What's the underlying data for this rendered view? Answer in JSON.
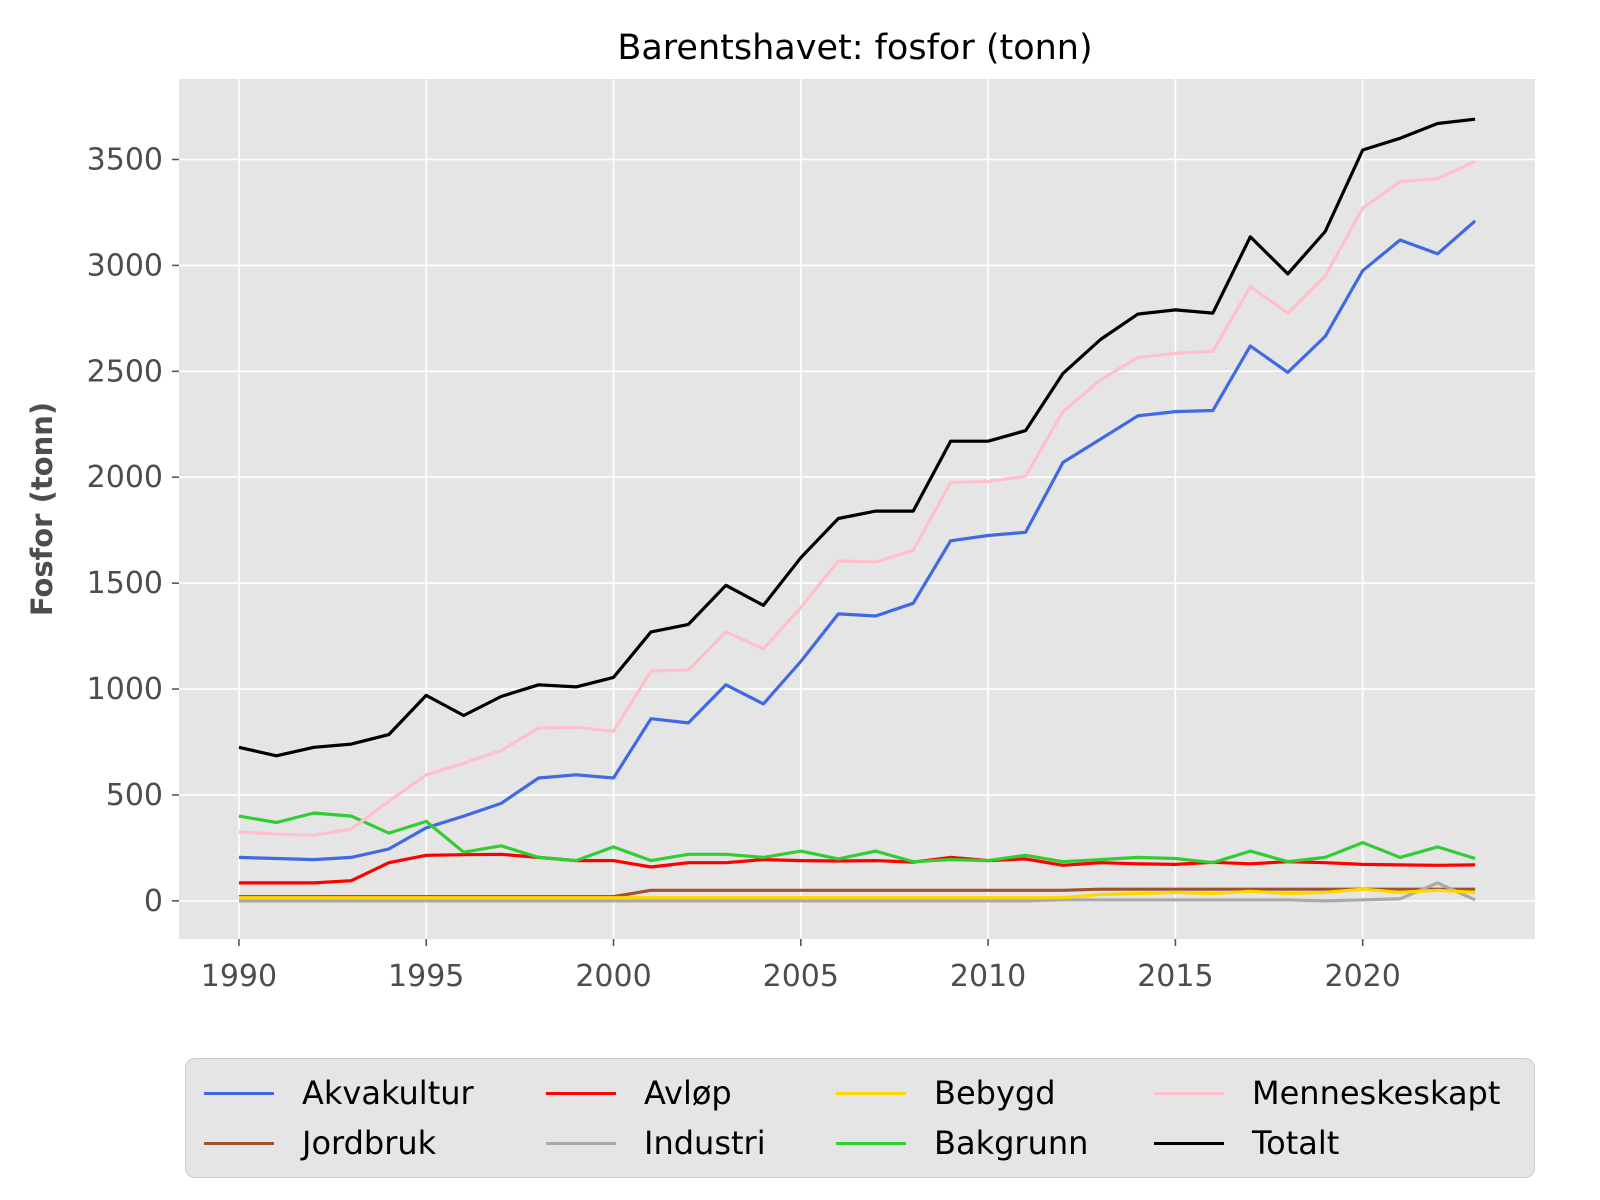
{
  "chart_data": {
    "type": "line",
    "title": "Barentshavet: fosfor (tonn)",
    "xlabel": "",
    "ylabel": "Fosfor (tonn)",
    "xlim": [
      1988.4,
      2024.6
    ],
    "ylim": [
      -180,
      3880
    ],
    "xticks": [
      1990,
      1995,
      2000,
      2005,
      2010,
      2015,
      2020
    ],
    "yticks": [
      0,
      500,
      1000,
      1500,
      2000,
      2500,
      3000,
      3500
    ],
    "grid": true,
    "legend_position": "bottom",
    "x": [
      1990,
      1991,
      1992,
      1993,
      1994,
      1995,
      1996,
      1997,
      1998,
      1999,
      2000,
      2001,
      2002,
      2003,
      2004,
      2005,
      2006,
      2007,
      2008,
      2009,
      2010,
      2011,
      2012,
      2013,
      2014,
      2015,
      2016,
      2017,
      2018,
      2019,
      2020,
      2021,
      2022,
      2023
    ],
    "series": [
      {
        "name": "Akvakultur",
        "color": "#4169e1",
        "values": [
          205,
          200,
          195,
          205,
          245,
          345,
          400,
          460,
          580,
          595,
          580,
          860,
          840,
          1020,
          930,
          1130,
          1355,
          1345,
          1405,
          1700,
          1725,
          1740,
          2070,
          2180,
          2290,
          2310,
          2315,
          2620,
          2495,
          2665,
          2975,
          3120,
          3055,
          3210
        ]
      },
      {
        "name": "Jordbruk",
        "color": "#a0522d",
        "values": [
          20,
          20,
          20,
          20,
          20,
          20,
          20,
          20,
          20,
          20,
          20,
          50,
          50,
          50,
          50,
          50,
          50,
          50,
          50,
          50,
          50,
          50,
          50,
          55,
          55,
          55,
          55,
          55,
          55,
          55,
          55,
          55,
          55,
          55
        ]
      },
      {
        "name": "Avløp",
        "color": "#ff0000",
        "values": [
          85,
          85,
          85,
          95,
          180,
          215,
          218,
          220,
          205,
          190,
          190,
          160,
          180,
          180,
          195,
          190,
          188,
          190,
          183,
          205,
          190,
          198,
          168,
          180,
          175,
          172,
          182,
          175,
          185,
          180,
          172,
          170,
          168,
          170
        ]
      },
      {
        "name": "Industri",
        "color": "#a9a9a9",
        "values": [
          0,
          0,
          0,
          0,
          0,
          0,
          0,
          0,
          0,
          0,
          0,
          0,
          0,
          0,
          0,
          0,
          0,
          0,
          0,
          0,
          0,
          0,
          5,
          5,
          5,
          5,
          5,
          5,
          5,
          0,
          5,
          10,
          85,
          5
        ]
      },
      {
        "name": "Bebygd",
        "color": "#ffd700",
        "values": [
          15,
          15,
          15,
          15,
          15,
          15,
          15,
          15,
          15,
          15,
          15,
          15,
          15,
          15,
          15,
          15,
          15,
          15,
          15,
          15,
          15,
          15,
          15,
          30,
          35,
          40,
          35,
          45,
          35,
          40,
          55,
          40,
          50,
          40
        ]
      },
      {
        "name": "Bakgrunn",
        "color": "#32cd32",
        "values": [
          400,
          370,
          415,
          400,
          320,
          375,
          230,
          260,
          205,
          190,
          255,
          190,
          220,
          220,
          205,
          235,
          198,
          235,
          185,
          195,
          190,
          215,
          185,
          195,
          205,
          200,
          180,
          235,
          185,
          205,
          275,
          205,
          255,
          200
        ]
      },
      {
        "name": "Menneskeskapt",
        "color": "#ffc0cb",
        "values": [
          325,
          315,
          310,
          340,
          470,
          595,
          650,
          710,
          815,
          820,
          800,
          1085,
          1090,
          1270,
          1190,
          1385,
          1605,
          1600,
          1655,
          1975,
          1980,
          2005,
          2310,
          2460,
          2565,
          2585,
          2595,
          2900,
          2775,
          2950,
          3270,
          3395,
          3410,
          3490
        ]
      },
      {
        "name": "Totalt",
        "color": "#000000",
        "values": [
          725,
          685,
          725,
          740,
          785,
          970,
          875,
          965,
          1020,
          1010,
          1055,
          1270,
          1305,
          1490,
          1395,
          1620,
          1805,
          1840,
          1840,
          2170,
          2170,
          2220,
          2490,
          2650,
          2770,
          2790,
          2775,
          3135,
          2960,
          3160,
          3545,
          3600,
          3670,
          3690
        ]
      }
    ],
    "legend_order": [
      "Akvakultur",
      "Avløp",
      "Bebygd",
      "Menneskeskapt",
      "Jordbruk",
      "Industri",
      "Bakgrunn",
      "Totalt"
    ]
  }
}
